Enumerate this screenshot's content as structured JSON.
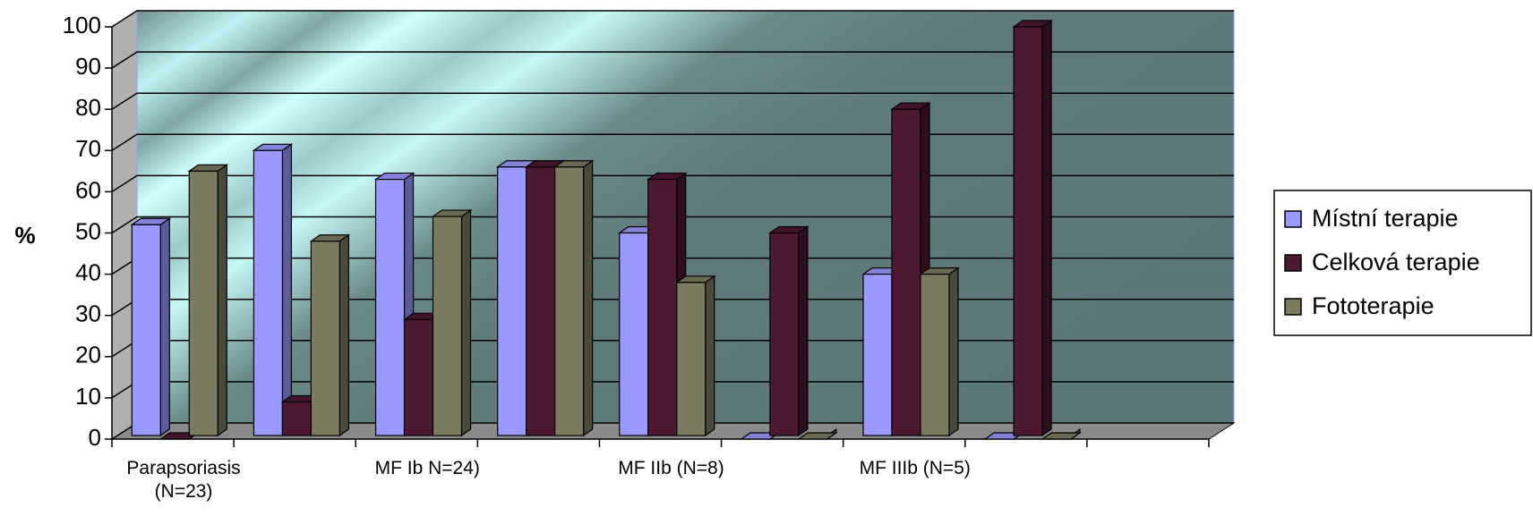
{
  "chart_data": {
    "type": "bar3d",
    "y_label": "%",
    "categories": [
      "Parapsoriasis (N=23)",
      null,
      "MF Ib N=24)",
      null,
      "MF IIb (N=8)",
      null,
      "MF IIIb (N=5)",
      null,
      null
    ],
    "series": [
      {
        "name": "Místní terapie",
        "color": "#9999ff",
        "values": [
          52,
          70,
          63,
          66,
          50,
          0,
          40,
          0,
          null
        ]
      },
      {
        "name": "Celková terapie",
        "color": "#4d1832",
        "values": [
          0,
          9,
          29,
          66,
          63,
          50,
          80,
          100,
          null
        ]
      },
      {
        "name": "Fototerapie",
        "color": "#7b7b60",
        "values": [
          65,
          48,
          54,
          66,
          38,
          0,
          40,
          0,
          null
        ]
      }
    ],
    "ylim": [
      0,
      100
    ],
    "yticks": [
      0,
      10,
      20,
      30,
      40,
      50,
      60,
      70,
      80,
      90,
      100
    ],
    "grid": true,
    "legend": "right"
  }
}
